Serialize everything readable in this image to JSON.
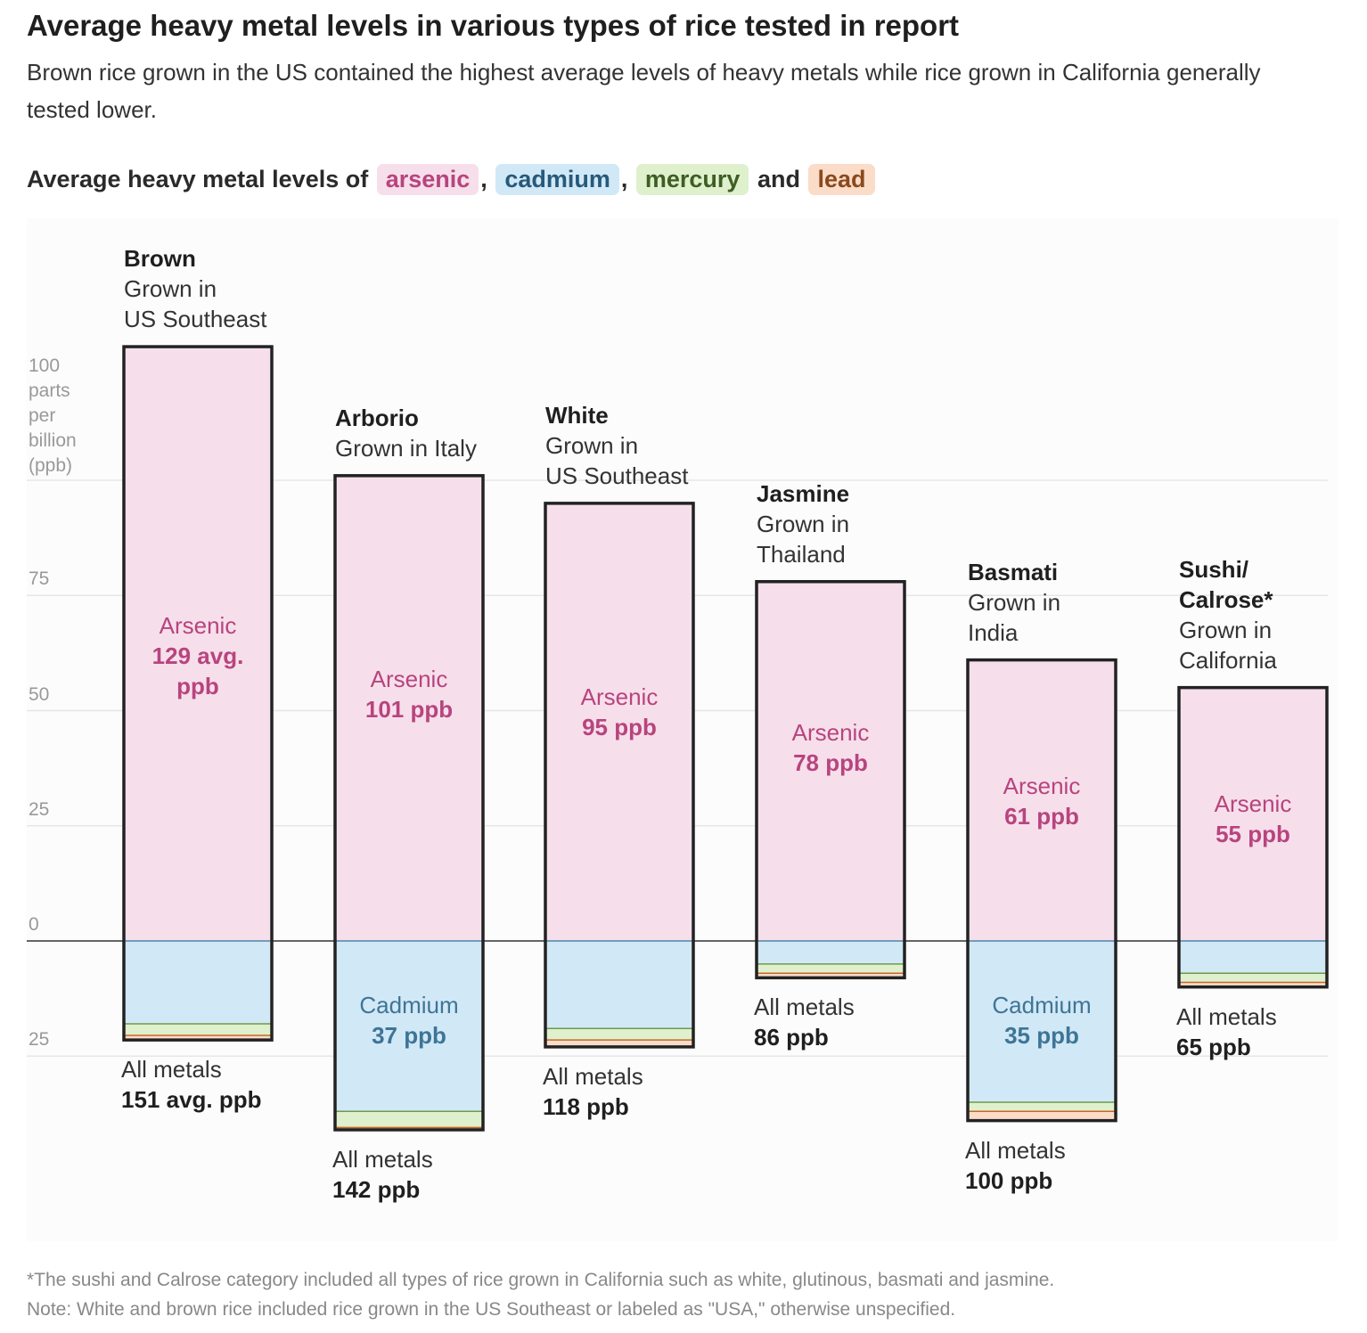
{
  "title": "Average heavy metal levels in various types of rice tested in report",
  "subtitle": "Brown rice grown in the US contained the highest average levels of heavy metals while rice grown in California generally tested lower.",
  "legend": {
    "prefix": "Average heavy metal levels of ",
    "sep1": ", ",
    "sep2": ", ",
    "and": " and ",
    "items": [
      "arsenic",
      "cadmium",
      "mercury",
      "lead"
    ]
  },
  "colors": {
    "arsenic": "#f6dfeb",
    "cadmium": "#d1e8f6",
    "mercury": "#dff0cd",
    "lead": "#fbdcc8",
    "arsenic_text": "#b8447e",
    "cadmium_text": "#3e7596",
    "mercury_line": "#6f9a4c",
    "lead_line": "#c8662a"
  },
  "chart_data": {
    "type": "bar",
    "subtype": "diverging stacked (arsenic above zero, other metals below)",
    "unit_label": "parts per billion (ppb)",
    "yticks": [
      {
        "value": 100,
        "label": "100"
      },
      {
        "value": 75,
        "label": "75"
      },
      {
        "value": 50,
        "label": "50"
      },
      {
        "value": 25,
        "label": "25"
      },
      {
        "value": 0,
        "label": "0"
      },
      {
        "value": -25,
        "label": "25"
      }
    ],
    "ytick_unit_lines": [
      "parts",
      "per",
      "billion",
      "(ppb)"
    ],
    "ylim": [
      -30,
      130
    ],
    "categories": [
      {
        "name": "Brown",
        "origin_lines": [
          "Grown in",
          "US Southeast"
        ],
        "arsenic": 129,
        "cadmium": 18,
        "mercury": 2.5,
        "lead": 1,
        "arsenic_label": [
          "Arsenic",
          "129 avg.",
          "ppb"
        ],
        "cadmium_label": null,
        "total_label": [
          "All metals",
          "151 avg. ppb"
        ]
      },
      {
        "name": "Arborio",
        "origin_lines": [
          "Grown in Italy"
        ],
        "arsenic": 101,
        "cadmium": 37,
        "mercury": 3.5,
        "lead": 0.5,
        "arsenic_label": [
          "Arsenic",
          "101 ppb"
        ],
        "cadmium_label": [
          "Cadmium",
          "37 ppb"
        ],
        "total_label": [
          "All metals",
          "142 ppb"
        ]
      },
      {
        "name": "White",
        "origin_lines": [
          "Grown in",
          "US Southeast"
        ],
        "arsenic": 95,
        "cadmium": 19,
        "mercury": 2.5,
        "lead": 1.5,
        "arsenic_label": [
          "Arsenic",
          "95 ppb"
        ],
        "cadmium_label": null,
        "total_label": [
          "All metals",
          "118 ppb"
        ]
      },
      {
        "name": "Jasmine",
        "origin_lines": [
          "Grown in",
          "Thailand"
        ],
        "arsenic": 78,
        "cadmium": 5,
        "mercury": 2,
        "lead": 1,
        "arsenic_label": [
          "Arsenic",
          "78 ppb"
        ],
        "cadmium_label": null,
        "total_label": [
          "All metals",
          "86 ppb"
        ]
      },
      {
        "name": "Basmati",
        "origin_lines": [
          "Grown in",
          "India"
        ],
        "arsenic": 61,
        "cadmium": 35,
        "mercury": 2,
        "lead": 2,
        "arsenic_label": [
          "Arsenic",
          "61 ppb"
        ],
        "cadmium_label": [
          "Cadmium",
          "35 ppb"
        ],
        "total_label": [
          "All metals",
          "100 ppb"
        ]
      },
      {
        "name": "Sushi/ Calrose*",
        "name_lines": [
          "Sushi/",
          "Calrose*"
        ],
        "origin_lines": [
          "Grown in",
          "California"
        ],
        "arsenic": 55,
        "cadmium": 7,
        "mercury": 2,
        "lead": 1,
        "arsenic_label": [
          "Arsenic",
          "55 ppb"
        ],
        "cadmium_label": null,
        "total_label": [
          "All metals",
          "65 ppb"
        ]
      }
    ]
  },
  "notes": [
    "*The sushi and Calrose category included all types of rice grown in California such as white, glutinous, basmati and jasmine.",
    "Note: White and brown rice included rice grown in the US Southeast or labeled as \"USA,\" otherwise unspecified."
  ]
}
